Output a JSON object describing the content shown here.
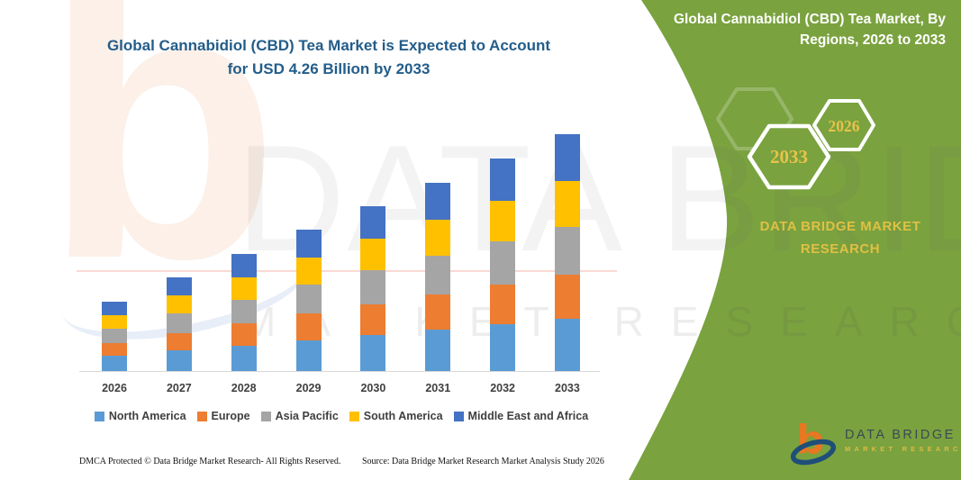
{
  "header": {
    "title": "Global Cannabidiol (CBD) Tea Market is Expected to Account for USD 4.26 Billion by 2033",
    "title_color": "#235d8a"
  },
  "side_panel": {
    "bg_color": "#7aa23f",
    "title": "Global Cannabidiol (CBD) Tea Market, By Regions, 2026 to 2033",
    "hexagon_years": [
      "2033",
      "2026"
    ],
    "brand_text": "DATA BRIDGE MARKET RESEARCH",
    "accent_gold": "#e8c349"
  },
  "chart_data": {
    "type": "bar",
    "stacked": true,
    "title": "Global Cannabidiol (CBD) Tea Market is Expected to Account for USD 4.26 Billion by 2033",
    "unit": "USD Billion",
    "categories": [
      "2026",
      "2027",
      "2028",
      "2029",
      "2030",
      "2031",
      "2032",
      "2033"
    ],
    "series": [
      {
        "name": "North America",
        "color": "#5b9bd5",
        "values": [
          0.28,
          0.37,
          0.46,
          0.56,
          0.65,
          0.75,
          0.84,
          0.94
        ]
      },
      {
        "name": "Europe",
        "color": "#ed7d31",
        "values": [
          0.23,
          0.31,
          0.4,
          0.48,
          0.56,
          0.64,
          0.72,
          0.8
        ]
      },
      {
        "name": "Asia Pacific",
        "color": "#a5a5a5",
        "values": [
          0.26,
          0.35,
          0.43,
          0.52,
          0.61,
          0.69,
          0.78,
          0.86
        ]
      },
      {
        "name": "South America",
        "color": "#ffc000",
        "values": [
          0.24,
          0.32,
          0.4,
          0.48,
          0.57,
          0.65,
          0.73,
          0.82
        ]
      },
      {
        "name": "Middle East and Africa",
        "color": "#4472c4",
        "values": [
          0.24,
          0.33,
          0.42,
          0.5,
          0.58,
          0.67,
          0.76,
          0.84
        ]
      }
    ],
    "totals": [
      1.25,
      1.68,
      2.11,
      2.54,
      2.97,
      3.4,
      3.83,
      4.26
    ],
    "ylim": [
      0,
      4.5
    ],
    "grid": false,
    "legend_position": "bottom"
  },
  "watermark": {
    "logo_glyph": "b",
    "row1": "DATA BRIDGE",
    "row2": "MARKET RESEARCH"
  },
  "footer": {
    "dmca": "DMCA Protected © Data Bridge Market Research-  All Rights Reserved.",
    "source": "Source: Data Bridge Market Research  Market Analysis Study 2026"
  },
  "logo": {
    "name": "DATA BRIDGE",
    "subtitle": "MARKET RESEARCH"
  }
}
